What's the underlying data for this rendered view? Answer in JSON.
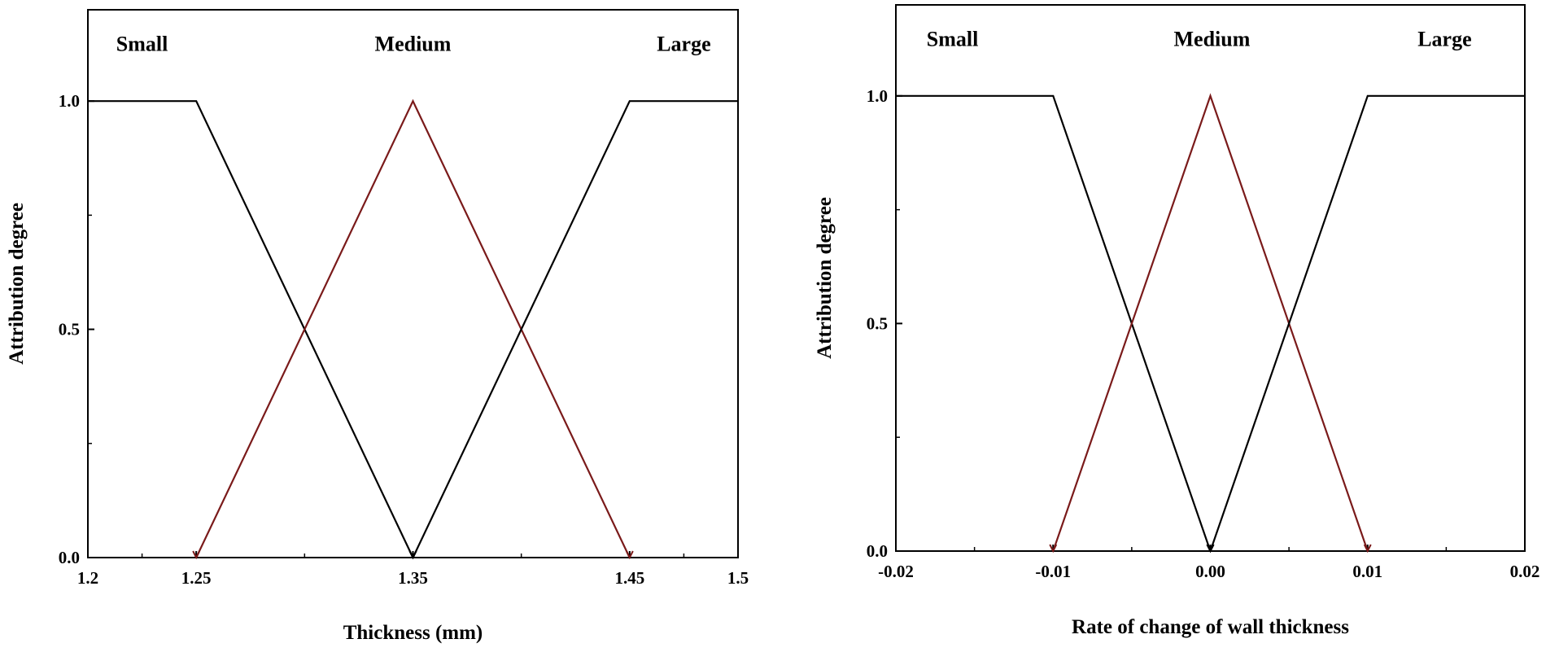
{
  "chart_data": [
    {
      "type": "line",
      "title": "",
      "xlabel": "Thickness (mm)",
      "ylabel": "Attribution degree",
      "xlim": [
        1.2,
        1.5
      ],
      "ylim": [
        0,
        1.2
      ],
      "xticks": [
        {
          "value": 1.2,
          "label": "1.2"
        },
        {
          "value": 1.25,
          "label": "1.25"
        },
        {
          "value": 1.35,
          "label": "1.35"
        },
        {
          "value": 1.45,
          "label": "1.45"
        },
        {
          "value": 1.5,
          "label": "1.5"
        }
      ],
      "yticks": [
        {
          "value": 0.0,
          "label": "0.0"
        },
        {
          "value": 0.5,
          "label": "0.5"
        },
        {
          "value": 1.0,
          "label": "1.0"
        }
      ],
      "series": [
        {
          "name": "Small",
          "color": "#000000",
          "x": [
            1.2,
            1.25,
            1.35
          ],
          "y": [
            1,
            1,
            0
          ]
        },
        {
          "name": "Medium",
          "color": "#7a1a1a",
          "x": [
            1.25,
            1.35,
            1.45
          ],
          "y": [
            0,
            1,
            0
          ]
        },
        {
          "name": "Large",
          "color": "#000000",
          "x": [
            1.35,
            1.45,
            1.5
          ],
          "y": [
            0,
            1,
            1
          ]
        }
      ],
      "annotations": [
        {
          "text": "Small",
          "x": 1.225,
          "y": 1.11
        },
        {
          "text": "Medium",
          "x": 1.35,
          "y": 1.11
        },
        {
          "text": "Large",
          "x": 1.475,
          "y": 1.11
        }
      ]
    },
    {
      "type": "line",
      "title": "",
      "xlabel": "Rate of change of wall thickness",
      "ylabel": "Attribution degree",
      "xlim": [
        -0.02,
        0.02
      ],
      "ylim": [
        0,
        1.2
      ],
      "xticks": [
        {
          "value": -0.02,
          "label": "-0.02"
        },
        {
          "value": -0.01,
          "label": "-0.01"
        },
        {
          "value": 0.0,
          "label": "0.00"
        },
        {
          "value": 0.01,
          "label": "0.01"
        },
        {
          "value": 0.02,
          "label": "0.02"
        }
      ],
      "yticks": [
        {
          "value": 0.0,
          "label": "0.0"
        },
        {
          "value": 0.5,
          "label": "0.5"
        },
        {
          "value": 1.0,
          "label": "1.0"
        }
      ],
      "series": [
        {
          "name": "Small",
          "color": "#000000",
          "x": [
            -0.02,
            -0.01,
            0.0
          ],
          "y": [
            1,
            1,
            0
          ]
        },
        {
          "name": "Medium",
          "color": "#7a1a1a",
          "x": [
            -0.01,
            0.0,
            0.01
          ],
          "y": [
            0,
            1,
            0
          ]
        },
        {
          "name": "Large",
          "color": "#000000",
          "x": [
            0.0,
            0.01,
            0.02
          ],
          "y": [
            0,
            1,
            1
          ]
        }
      ],
      "annotations": [
        {
          "text": "Small",
          "x": -0.0164,
          "y": 1.11
        },
        {
          "text": "Medium",
          "x": 0.0001,
          "y": 1.11
        },
        {
          "text": "Large",
          "x": 0.0149,
          "y": 1.11
        }
      ]
    }
  ]
}
